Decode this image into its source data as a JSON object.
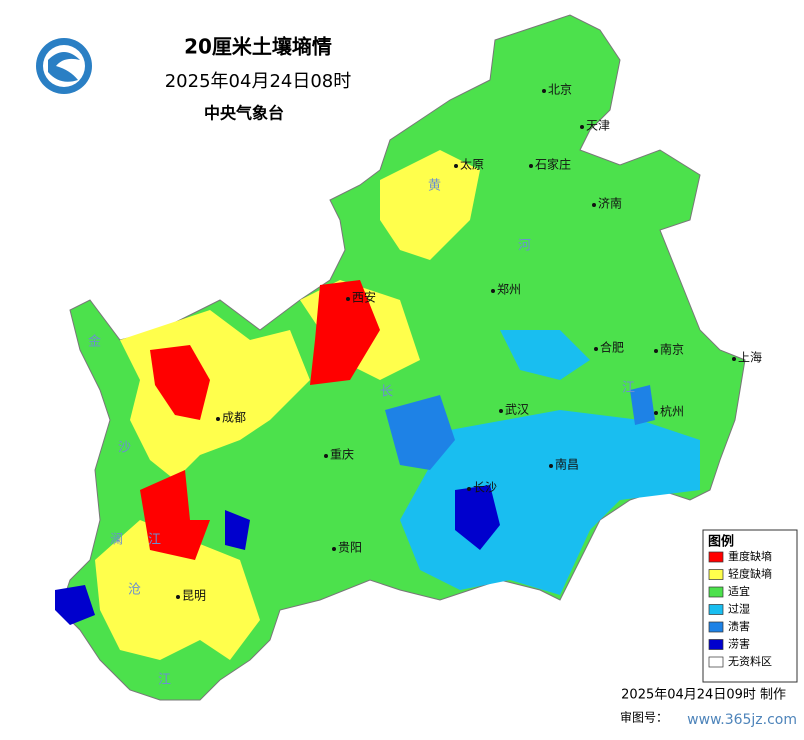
{
  "header": {
    "title": "20厘米土壤墒情",
    "time": "2025年04月24日08时",
    "issuer": "中央气象台"
  },
  "cities": [
    "北京",
    "天津",
    "太原",
    "石家庄",
    "济南",
    "郑州",
    "西安",
    "合肥",
    "南京",
    "上海",
    "成都",
    "武汉",
    "杭州",
    "重庆",
    "南昌",
    "长沙",
    "贵阳",
    "昆明"
  ],
  "rivers": [
    "黄",
    "河",
    "长",
    "江",
    "金",
    "沙",
    "江",
    "澜",
    "沧",
    "江"
  ],
  "legend": {
    "title": "图例",
    "items": [
      {
        "label": "重度缺墒",
        "color": "#ff0000"
      },
      {
        "label": "轻度缺墒",
        "color": "#ffff4c"
      },
      {
        "label": "适宜",
        "color": "#4ce14c"
      },
      {
        "label": "过湿",
        "color": "#19bef0"
      },
      {
        "label": "渍害",
        "color": "#1e82e6"
      },
      {
        "label": "涝害",
        "color": "#0000cd"
      },
      {
        "label": "无资料区",
        "color": "#ffffff"
      }
    ]
  },
  "footer": {
    "made": "2025年04月24日09时 制作",
    "approval": "审图号：",
    "watermark": "www.365jz.com"
  }
}
